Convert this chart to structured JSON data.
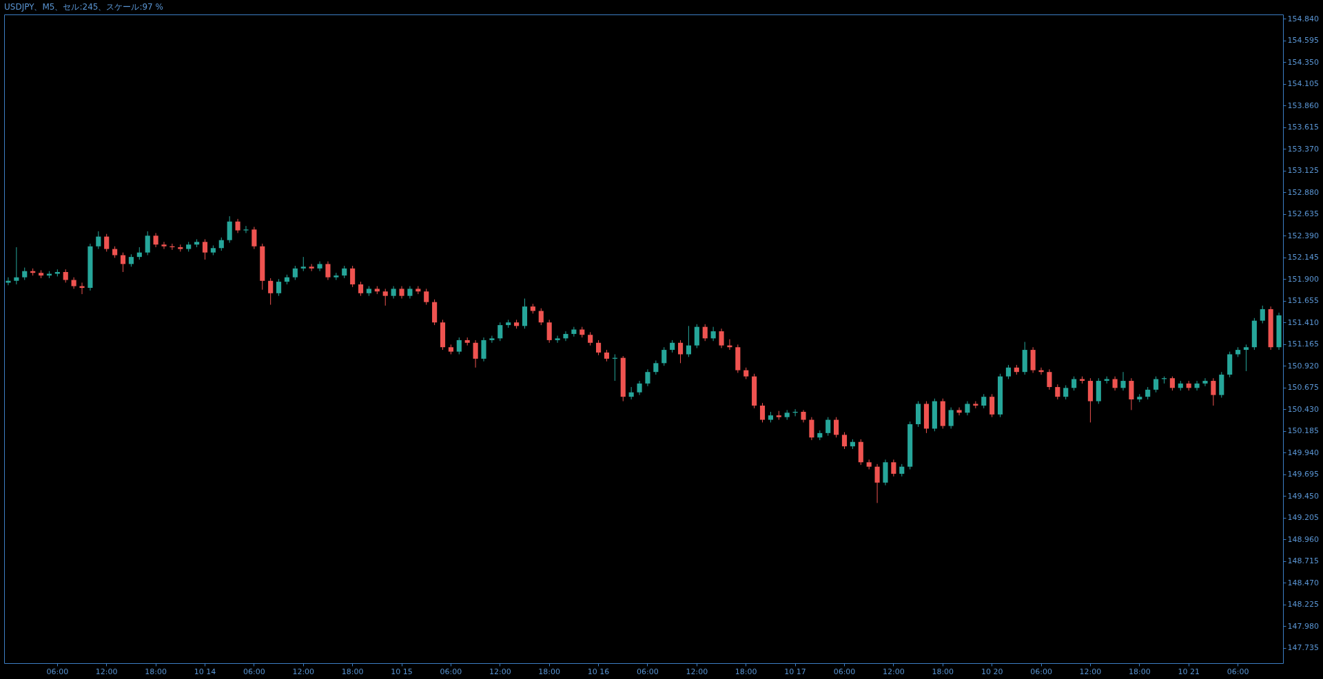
{
  "chart_data": {
    "type": "candlestick",
    "title": "USDJPY、M5、セル:245、スケール:97 %",
    "categories": [
      null,
      null,
      null,
      null,
      null,
      null,
      "06:00",
      null,
      null,
      null,
      null,
      null,
      "12:00",
      null,
      null,
      null,
      null,
      null,
      "18:00",
      null,
      null,
      null,
      null,
      null,
      "10 14",
      null,
      null,
      null,
      null,
      null,
      "06:00",
      null,
      null,
      null,
      null,
      null,
      "12:00",
      null,
      null,
      null,
      null,
      null,
      "18:00",
      null,
      null,
      null,
      null,
      null,
      "10 15",
      null,
      null,
      null,
      null,
      null,
      "06:00",
      null,
      null,
      null,
      null,
      null,
      "12:00",
      null,
      null,
      null,
      null,
      null,
      "18:00",
      null,
      null,
      null,
      null,
      null,
      "10 16",
      null,
      null,
      null,
      null,
      null,
      "06:00",
      null,
      null,
      null,
      null,
      null,
      "12:00",
      null,
      null,
      null,
      null,
      null,
      "18:00",
      null,
      null,
      null,
      null,
      null,
      "10 17",
      null,
      null,
      null,
      null,
      null,
      "06:00",
      null,
      null,
      null,
      null,
      null,
      "12:00",
      null,
      null,
      null,
      null,
      null,
      "18:00",
      null,
      null,
      null,
      null,
      null,
      "10 20",
      null,
      null,
      null,
      null,
      null,
      "06:00",
      null,
      null,
      null,
      null,
      null,
      "12:00",
      null,
      null,
      null,
      null,
      null,
      "18:00",
      null,
      null,
      null,
      null,
      null,
      "10 21",
      null,
      null,
      null,
      null,
      null,
      "06:00",
      null,
      null,
      null,
      null,
      null
    ],
    "ohlc": [
      [
        151.86,
        151.92,
        151.83,
        151.88
      ],
      [
        151.88,
        152.26,
        151.84,
        151.92
      ],
      [
        151.92,
        152.03,
        151.89,
        151.99
      ],
      [
        151.99,
        152.02,
        151.94,
        151.97
      ],
      [
        151.97,
        152.0,
        151.91,
        151.94
      ],
      [
        151.94,
        151.99,
        151.91,
        151.96
      ],
      [
        151.96,
        152.01,
        151.93,
        151.98
      ],
      [
        151.98,
        152.01,
        151.86,
        151.89
      ],
      [
        151.89,
        151.92,
        151.79,
        151.82
      ],
      [
        151.82,
        151.86,
        151.73,
        151.8
      ],
      [
        151.8,
        152.3,
        151.77,
        152.27
      ],
      [
        152.27,
        152.44,
        152.24,
        152.38
      ],
      [
        152.38,
        152.41,
        152.21,
        152.24
      ],
      [
        152.24,
        152.27,
        152.14,
        152.17
      ],
      [
        152.17,
        152.2,
        151.98,
        152.07
      ],
      [
        152.07,
        152.18,
        152.04,
        152.15
      ],
      [
        152.15,
        152.26,
        152.12,
        152.2
      ],
      [
        152.2,
        152.44,
        152.17,
        152.39
      ],
      [
        152.39,
        152.42,
        152.26,
        152.29
      ],
      [
        152.29,
        152.32,
        152.24,
        152.27
      ],
      [
        152.27,
        152.3,
        152.23,
        152.26
      ],
      [
        152.26,
        152.29,
        152.21,
        152.24
      ],
      [
        152.24,
        152.32,
        152.21,
        152.29
      ],
      [
        152.29,
        152.35,
        152.26,
        152.32
      ],
      [
        152.32,
        152.35,
        152.12,
        152.2
      ],
      [
        152.2,
        152.28,
        152.17,
        152.25
      ],
      [
        152.25,
        152.37,
        152.22,
        152.34
      ],
      [
        152.34,
        152.61,
        152.31,
        152.55
      ],
      [
        152.55,
        152.58,
        152.42,
        152.45
      ],
      [
        152.45,
        152.5,
        152.42,
        152.46
      ],
      [
        152.46,
        152.49,
        152.24,
        152.27
      ],
      [
        152.27,
        152.3,
        151.78,
        151.88
      ],
      [
        151.88,
        151.91,
        151.61,
        151.74
      ],
      [
        151.74,
        151.9,
        151.71,
        151.87
      ],
      [
        151.87,
        151.95,
        151.84,
        151.92
      ],
      [
        151.92,
        152.05,
        151.89,
        152.02
      ],
      [
        152.02,
        152.15,
        151.99,
        152.04
      ],
      [
        152.04,
        152.07,
        151.99,
        152.02
      ],
      [
        152.02,
        152.1,
        151.99,
        152.07
      ],
      [
        152.07,
        152.1,
        151.89,
        151.92
      ],
      [
        151.92,
        151.97,
        151.89,
        151.94
      ],
      [
        151.94,
        152.05,
        151.91,
        152.02
      ],
      [
        152.02,
        152.05,
        151.81,
        151.84
      ],
      [
        151.84,
        151.87,
        151.71,
        151.74
      ],
      [
        151.74,
        151.82,
        151.71,
        151.79
      ],
      [
        151.79,
        151.82,
        151.73,
        151.76
      ],
      [
        151.76,
        151.79,
        151.6,
        151.71
      ],
      [
        151.71,
        151.82,
        151.68,
        151.79
      ],
      [
        151.79,
        151.82,
        151.68,
        151.71
      ],
      [
        151.71,
        151.82,
        151.68,
        151.79
      ],
      [
        151.79,
        151.82,
        151.73,
        151.76
      ],
      [
        151.76,
        151.79,
        151.61,
        151.64
      ],
      [
        151.64,
        151.67,
        151.38,
        151.41
      ],
      [
        151.41,
        151.44,
        151.1,
        151.13
      ],
      [
        151.13,
        151.16,
        151.05,
        151.08
      ],
      [
        151.08,
        151.24,
        151.05,
        151.21
      ],
      [
        151.21,
        151.24,
        151.15,
        151.18
      ],
      [
        151.18,
        151.21,
        150.9,
        151.0
      ],
      [
        151.0,
        151.24,
        150.97,
        151.21
      ],
      [
        151.21,
        151.26,
        151.18,
        151.23
      ],
      [
        151.23,
        151.41,
        151.2,
        151.38
      ],
      [
        151.38,
        151.44,
        151.35,
        151.41
      ],
      [
        151.41,
        151.44,
        151.34,
        151.37
      ],
      [
        151.37,
        151.68,
        151.34,
        151.59
      ],
      [
        151.59,
        151.62,
        151.51,
        151.54
      ],
      [
        151.54,
        151.57,
        151.38,
        151.41
      ],
      [
        151.41,
        151.44,
        151.18,
        151.21
      ],
      [
        151.21,
        151.26,
        151.18,
        151.23
      ],
      [
        151.23,
        151.31,
        151.2,
        151.28
      ],
      [
        151.28,
        151.36,
        151.25,
        151.33
      ],
      [
        151.33,
        151.36,
        151.24,
        151.27
      ],
      [
        151.27,
        151.3,
        151.15,
        151.18
      ],
      [
        151.18,
        151.21,
        151.04,
        151.07
      ],
      [
        151.07,
        151.1,
        150.97,
        151.0
      ],
      [
        151.0,
        151.05,
        150.75,
        151.01
      ],
      [
        151.01,
        151.03,
        150.52,
        150.57
      ],
      [
        150.57,
        150.68,
        150.54,
        150.62
      ],
      [
        150.62,
        150.75,
        150.59,
        150.72
      ],
      [
        150.72,
        150.88,
        150.69,
        150.85
      ],
      [
        150.85,
        150.98,
        150.82,
        150.95
      ],
      [
        150.95,
        151.13,
        150.92,
        151.1
      ],
      [
        151.1,
        151.21,
        151.07,
        151.18
      ],
      [
        151.18,
        151.21,
        150.95,
        151.05
      ],
      [
        151.05,
        151.37,
        151.02,
        151.15
      ],
      [
        151.15,
        151.39,
        151.12,
        151.36
      ],
      [
        151.36,
        151.39,
        151.2,
        151.23
      ],
      [
        151.23,
        151.36,
        151.2,
        151.31
      ],
      [
        151.31,
        151.34,
        151.12,
        151.15
      ],
      [
        151.15,
        151.22,
        151.1,
        151.13
      ],
      [
        151.13,
        151.16,
        150.84,
        150.87
      ],
      [
        150.87,
        150.9,
        150.77,
        150.8
      ],
      [
        150.8,
        150.83,
        150.44,
        150.47
      ],
      [
        150.47,
        150.5,
        150.28,
        150.31
      ],
      [
        150.31,
        150.4,
        150.28,
        150.36
      ],
      [
        150.36,
        150.41,
        150.31,
        150.34
      ],
      [
        150.34,
        150.42,
        150.31,
        150.39
      ],
      [
        150.39,
        150.43,
        150.35,
        150.4
      ],
      [
        150.4,
        150.42,
        150.28,
        150.31
      ],
      [
        150.31,
        150.34,
        150.08,
        150.11
      ],
      [
        150.11,
        150.19,
        150.08,
        150.16
      ],
      [
        150.16,
        150.34,
        150.13,
        150.31
      ],
      [
        150.31,
        150.34,
        150.11,
        150.14
      ],
      [
        150.14,
        150.17,
        149.98,
        150.01
      ],
      [
        150.01,
        150.09,
        149.98,
        150.06
      ],
      [
        150.06,
        150.09,
        149.8,
        149.83
      ],
      [
        149.83,
        149.86,
        149.75,
        149.78
      ],
      [
        149.78,
        149.81,
        149.37,
        149.6
      ],
      [
        149.6,
        149.86,
        149.57,
        149.83
      ],
      [
        149.83,
        149.86,
        149.67,
        149.7
      ],
      [
        149.7,
        149.81,
        149.67,
        149.78
      ],
      [
        149.78,
        150.29,
        149.75,
        150.26
      ],
      [
        150.26,
        150.52,
        150.23,
        150.49
      ],
      [
        150.49,
        150.52,
        150.16,
        150.21
      ],
      [
        150.21,
        150.55,
        150.18,
        150.52
      ],
      [
        150.52,
        150.55,
        150.21,
        150.24
      ],
      [
        150.24,
        150.45,
        150.21,
        150.42
      ],
      [
        150.42,
        150.45,
        150.36,
        150.39
      ],
      [
        150.39,
        150.52,
        150.36,
        150.49
      ],
      [
        150.49,
        150.52,
        150.44,
        150.47
      ],
      [
        150.47,
        150.6,
        150.44,
        150.57
      ],
      [
        150.57,
        150.6,
        150.34,
        150.37
      ],
      [
        150.37,
        150.83,
        150.34,
        150.8
      ],
      [
        150.8,
        150.93,
        150.77,
        150.9
      ],
      [
        150.9,
        150.93,
        150.82,
        150.85
      ],
      [
        150.85,
        151.19,
        150.82,
        151.1
      ],
      [
        151.1,
        151.13,
        150.84,
        150.87
      ],
      [
        150.87,
        150.9,
        150.82,
        150.85
      ],
      [
        150.85,
        150.88,
        150.65,
        150.68
      ],
      [
        150.68,
        150.71,
        150.54,
        150.57
      ],
      [
        150.57,
        150.7,
        150.54,
        150.67
      ],
      [
        150.67,
        150.8,
        150.64,
        150.77
      ],
      [
        150.77,
        150.8,
        150.72,
        150.75
      ],
      [
        150.75,
        150.78,
        150.28,
        150.52
      ],
      [
        150.52,
        150.78,
        150.49,
        150.75
      ],
      [
        150.75,
        150.8,
        150.72,
        150.77
      ],
      [
        150.77,
        150.8,
        150.64,
        150.67
      ],
      [
        150.67,
        150.85,
        150.64,
        150.75
      ],
      [
        150.75,
        150.78,
        150.42,
        150.54
      ],
      [
        150.54,
        150.6,
        150.51,
        150.57
      ],
      [
        150.57,
        150.68,
        150.54,
        150.65
      ],
      [
        150.65,
        150.8,
        150.62,
        150.77
      ],
      [
        150.77,
        150.8,
        150.72,
        150.78
      ],
      [
        150.78,
        150.8,
        150.64,
        150.67
      ],
      [
        150.67,
        150.75,
        150.64,
        150.72
      ],
      [
        150.72,
        150.75,
        150.64,
        150.67
      ],
      [
        150.67,
        150.75,
        150.64,
        150.72
      ],
      [
        150.72,
        150.78,
        150.69,
        150.75
      ],
      [
        150.75,
        150.78,
        150.47,
        150.59
      ],
      [
        150.59,
        150.85,
        150.56,
        150.82
      ],
      [
        150.82,
        151.08,
        150.79,
        151.05
      ],
      [
        151.05,
        151.13,
        151.02,
        151.1
      ],
      [
        151.1,
        151.16,
        150.86,
        151.13
      ],
      [
        151.13,
        151.46,
        151.1,
        151.43
      ],
      [
        151.43,
        151.6,
        151.4,
        151.56
      ],
      [
        151.56,
        151.59,
        151.1,
        151.13
      ],
      [
        151.13,
        151.52,
        151.1,
        151.49
      ]
    ],
    "colors": [
      "#26a69a",
      "#26a69a",
      "#26a69a",
      "#ef5350",
      "#ef5350",
      "#26a69a",
      "#26a69a",
      "#ef5350",
      "#ef5350",
      "#ef5350",
      "#26a69a",
      "#26a69a",
      "#ef5350",
      "#ef5350",
      "#ef5350",
      "#26a69a",
      "#26a69a",
      "#26a69a",
      "#ef5350",
      "#ef5350",
      "#ef5350",
      "#ef5350",
      "#26a69a",
      "#26a69a",
      "#ef5350",
      "#26a69a",
      "#26a69a",
      "#26a69a",
      "#ef5350",
      "#26a69a",
      "#ef5350",
      "#ef5350",
      "#ef5350",
      "#26a69a",
      "#26a69a",
      "#26a69a",
      "#26a69a",
      "#ef5350",
      "#26a69a",
      "#ef5350",
      "#26a69a",
      "#26a69a",
      "#ef5350",
      "#ef5350",
      "#26a69a",
      "#ef5350",
      "#ef5350",
      "#26a69a",
      "#ef5350",
      "#26a69a",
      "#ef5350",
      "#ef5350",
      "#ef5350",
      "#ef5350",
      "#ef5350",
      "#26a69a",
      "#ef5350",
      "#ef5350",
      "#26a69a",
      "#26a69a",
      "#26a69a",
      "#26a69a",
      "#ef5350",
      "#26a69a",
      "#ef5350",
      "#ef5350",
      "#ef5350",
      "#26a69a",
      "#26a69a",
      "#26a69a",
      "#ef5350",
      "#ef5350",
      "#ef5350",
      "#ef5350",
      "#26a69a",
      "#ef5350",
      "#26a69a",
      "#26a69a",
      "#26a69a",
      "#26a69a",
      "#26a69a",
      "#26a69a",
      "#ef5350",
      "#26a69a",
      "#26a69a",
      "#ef5350",
      "#26a69a",
      "#ef5350",
      "#ef5350",
      "#ef5350",
      "#ef5350",
      "#ef5350",
      "#ef5350",
      "#26a69a",
      "#ef5350",
      "#26a69a",
      "#26a69a",
      "#ef5350",
      "#ef5350",
      "#26a69a",
      "#26a69a",
      "#ef5350",
      "#ef5350",
      "#26a69a",
      "#ef5350",
      "#ef5350",
      "#ef5350",
      "#26a69a",
      "#ef5350",
      "#26a69a",
      "#26a69a",
      "#26a69a",
      "#ef5350",
      "#26a69a",
      "#ef5350",
      "#26a69a",
      "#ef5350",
      "#26a69a",
      "#ef5350",
      "#26a69a",
      "#ef5350",
      "#26a69a",
      "#26a69a",
      "#ef5350",
      "#26a69a",
      "#ef5350",
      "#ef5350",
      "#ef5350",
      "#ef5350",
      "#26a69a",
      "#26a69a",
      "#ef5350",
      "#ef5350",
      "#26a69a",
      "#26a69a",
      "#ef5350",
      "#26a69a",
      "#ef5350",
      "#26a69a",
      "#26a69a",
      "#26a69a",
      "#26a69a",
      "#ef5350",
      "#26a69a",
      "#ef5350",
      "#26a69a",
      "#26a69a",
      "#ef5350",
      "#26a69a",
      "#26a69a",
      "#26a69a",
      "#26a69a",
      "#26a69a",
      "#26a69a",
      "#ef5350",
      "#26a69a"
    ],
    "ylim": [
      147.56,
      154.89
    ],
    "yticks": [
      {
        "value": 154.84,
        "label": "154.840"
      },
      {
        "value": 154.595,
        "label": "154.595"
      },
      {
        "value": 154.35,
        "label": "154.350"
      },
      {
        "value": 154.105,
        "label": "154.105"
      },
      {
        "value": 153.86,
        "label": "153.860"
      },
      {
        "value": 153.615,
        "label": "153.615"
      },
      {
        "value": 153.37,
        "label": "153.370"
      },
      {
        "value": 153.125,
        "label": "153.125"
      },
      {
        "value": 152.88,
        "label": "152.880"
      },
      {
        "value": 152.635,
        "label": "152.635"
      },
      {
        "value": 152.39,
        "label": "152.390"
      },
      {
        "value": 152.145,
        "label": "152.145"
      },
      {
        "value": 151.9,
        "label": "151.900"
      },
      {
        "value": 151.655,
        "label": "151.655"
      },
      {
        "value": 151.41,
        "label": "151.410"
      },
      {
        "value": 151.165,
        "label": "151.165"
      },
      {
        "value": 150.92,
        "label": "150.920"
      },
      {
        "value": 150.675,
        "label": "150.675"
      },
      {
        "value": 150.43,
        "label": "150.430"
      },
      {
        "value": 150.185,
        "label": "150.185"
      },
      {
        "value": 149.94,
        "label": "149.940"
      },
      {
        "value": 149.695,
        "label": "149.695"
      },
      {
        "value": 149.45,
        "label": "149.450"
      },
      {
        "value": 149.205,
        "label": "149.205"
      },
      {
        "value": 148.96,
        "label": "148.960"
      },
      {
        "value": 148.715,
        "label": "148.715"
      },
      {
        "value": 148.47,
        "label": "148.470"
      },
      {
        "value": 148.225,
        "label": "148.225"
      },
      {
        "value": 147.98,
        "label": "147.980"
      },
      {
        "value": 147.735,
        "label": "147.735"
      }
    ]
  }
}
